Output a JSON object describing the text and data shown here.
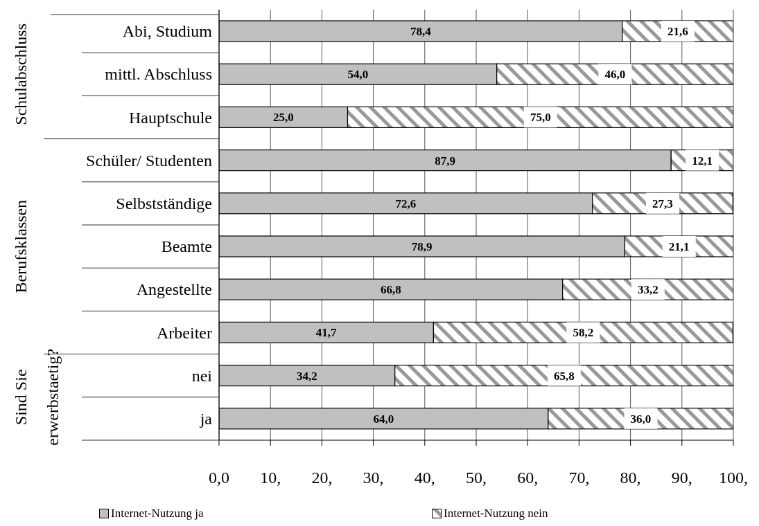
{
  "chart_data": {
    "type": "bar",
    "orientation": "horizontal",
    "stacked": true,
    "categories": [
      "Abi, Studium",
      "mittl. Abschluss",
      "Hauptschule",
      "Schüler/ Studenten",
      "Selbstständige",
      "Beamte",
      "Angestellte",
      "Arbeiter",
      "nei",
      "ja"
    ],
    "series": [
      {
        "name": "Internet-Nutzung ja",
        "color": "#c0c0c0",
        "values": [
          78.4,
          54.0,
          25.0,
          87.9,
          72.6,
          78.9,
          66.8,
          41.7,
          34.2,
          64.0
        ]
      },
      {
        "name": "Internet-Nutzung nein",
        "color": "#999999",
        "values": [
          21.6,
          46.0,
          75.0,
          12.1,
          27.3,
          21.1,
          33.2,
          58.2,
          65.8,
          36.0
        ]
      }
    ],
    "value_labels": [
      [
        "78,4",
        "54,0",
        "25,0",
        "87,9",
        "72,6",
        "78,9",
        "66,8",
        "41,7",
        "34,2",
        "64,0"
      ],
      [
        "21,6",
        "46,0",
        "75,0",
        "12,1",
        "27,3",
        "21,1",
        "33,2",
        "58,2",
        "65,8",
        "36,0"
      ]
    ],
    "xlim": [
      0,
      100
    ],
    "xticks": [
      {
        "value": 0,
        "label": "0,0"
      },
      {
        "value": 10,
        "label": "10,"
      },
      {
        "value": 20,
        "label": "20,"
      },
      {
        "value": 30,
        "label": "30,"
      },
      {
        "value": 40,
        "label": "40,"
      },
      {
        "value": 50,
        "label": "50,"
      },
      {
        "value": 60,
        "label": "60,"
      },
      {
        "value": 70,
        "label": "70,"
      },
      {
        "value": 80,
        "label": "80,"
      },
      {
        "value": 90,
        "label": "90,"
      },
      {
        "value": 100,
        "label": "100,"
      }
    ],
    "grid": "x",
    "legend": "bottom",
    "annotations": [
      "Schulabschluss",
      "Berufsklassen",
      "Sind Sie erwerbstaetig?"
    ]
  }
}
